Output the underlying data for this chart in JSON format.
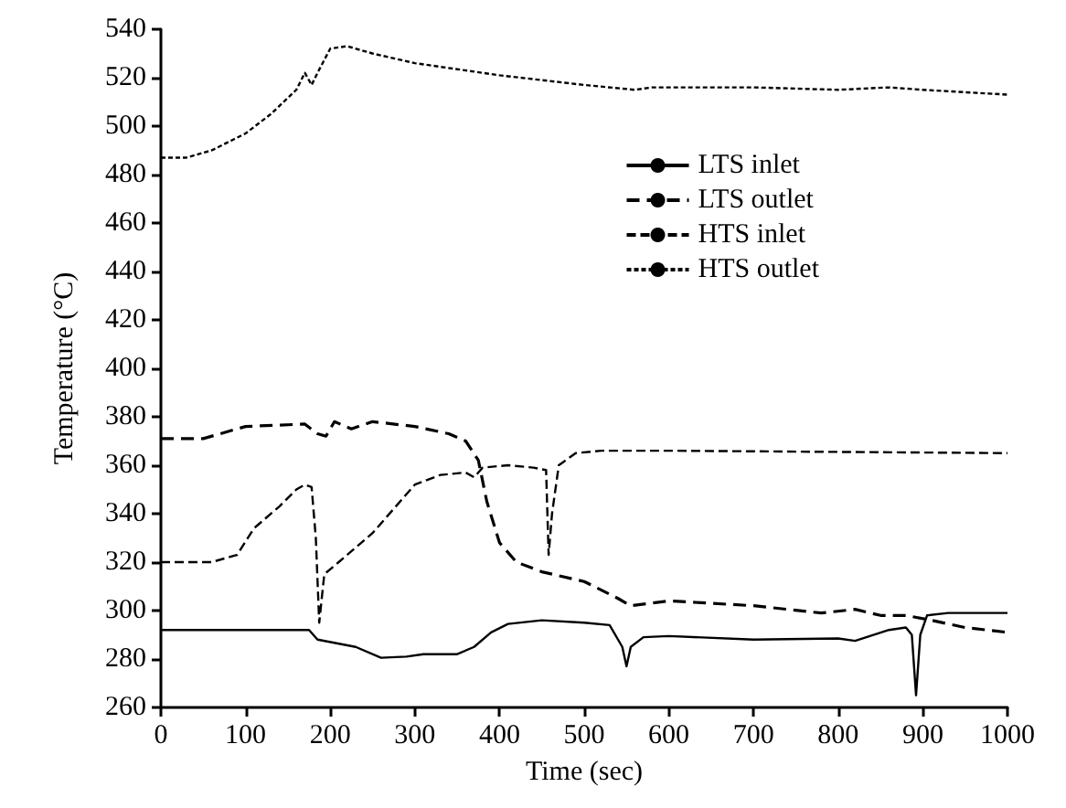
{
  "chart_data": {
    "type": "line",
    "xlabel": "Time (sec)",
    "ylabel": "Temperature (°C)",
    "xlim": [
      0,
      1000
    ],
    "xticks": [
      0,
      100,
      200,
      300,
      400,
      500,
      600,
      700,
      800,
      900,
      1000
    ],
    "ylim": [
      260,
      540
    ],
    "yticks": [
      260,
      280,
      300,
      320,
      340,
      360,
      380,
      400,
      420,
      440,
      460,
      480,
      500,
      520,
      540
    ],
    "grid": false,
    "legend": "top right",
    "marker": "none",
    "series": [
      {
        "name": "LTS inlet",
        "color": "#000000",
        "line_style": "solid",
        "x": [
          0,
          175,
          185,
          230,
          260,
          290,
          310,
          350,
          370,
          390,
          410,
          450,
          500,
          530,
          545,
          550,
          555,
          570,
          600,
          700,
          800,
          820,
          860,
          880,
          887,
          892,
          897,
          905,
          930,
          1000
        ],
        "values": [
          292,
          292,
          288,
          285,
          280.5,
          281,
          282,
          282,
          285,
          291,
          294.5,
          296,
          295,
          294,
          285,
          277,
          285,
          289,
          289.5,
          288,
          288.5,
          287.5,
          292,
          293,
          290,
          265,
          290,
          298,
          299,
          299
        ]
      },
      {
        "name": "LTS outlet",
        "color": "#000000",
        "line_style": "dashed",
        "x": [
          0,
          50,
          100,
          170,
          185,
          195,
          205,
          225,
          250,
          300,
          340,
          360,
          375,
          385,
          400,
          420,
          450,
          500,
          540,
          555,
          600,
          700,
          780,
          820,
          850,
          880,
          910,
          950,
          1000
        ],
        "values": [
          371,
          371,
          376,
          377,
          373,
          372,
          378,
          375,
          378,
          376,
          373,
          370,
          362,
          345,
          328,
          320,
          316,
          312,
          305,
          302,
          304,
          302,
          299,
          300.5,
          298,
          298,
          296,
          293,
          291
        ]
      },
      {
        "name": "HTS inlet",
        "color": "#000000",
        "line_style": "dashed",
        "x": [
          0,
          60,
          90,
          110,
          140,
          160,
          170,
          178,
          183,
          187,
          193,
          210,
          250,
          300,
          330,
          360,
          370,
          380,
          410,
          440,
          455,
          458,
          462,
          470,
          490,
          520,
          600,
          1000
        ],
        "values": [
          320,
          320,
          323,
          334,
          343,
          350,
          352,
          351,
          330,
          295,
          315,
          320,
          332,
          352,
          356,
          357,
          355,
          359,
          360,
          359,
          358,
          323,
          340,
          360,
          365,
          366,
          366,
          365
        ]
      },
      {
        "name": "HTS outlet",
        "color": "#000000",
        "line_style": "dotted",
        "x": [
          0,
          30,
          60,
          100,
          130,
          160,
          170,
          178,
          185,
          200,
          220,
          250,
          300,
          400,
          500,
          560,
          580,
          700,
          800,
          860,
          900,
          950,
          1000
        ],
        "values": [
          487,
          487,
          490,
          497,
          505,
          515,
          522,
          517,
          522,
          532,
          533,
          530,
          526,
          521,
          517,
          515,
          516,
          516,
          515,
          516,
          515,
          514,
          513
        ]
      }
    ]
  }
}
